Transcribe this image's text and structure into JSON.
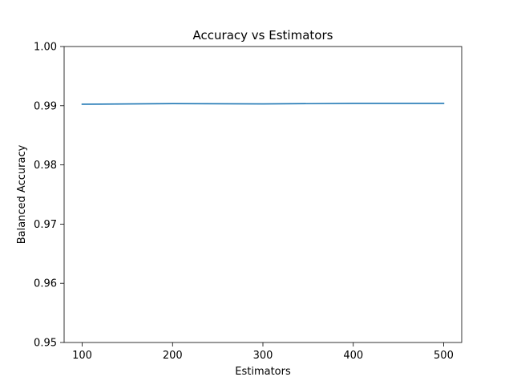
{
  "chart_data": {
    "type": "line",
    "title": "Accuracy vs Estimators",
    "xlabel": "Estimators",
    "ylabel": "Balanced Accuracy",
    "x": [
      100,
      200,
      300,
      400,
      500
    ],
    "series": [
      {
        "values": [
          0.99025,
          0.99035,
          0.9903,
          0.9904,
          0.9904
        ],
        "color": "#1f77b4"
      }
    ],
    "xlim": [
      80,
      520
    ],
    "ylim": [
      0.95,
      1.0
    ],
    "xticks": [
      "100",
      "200",
      "300",
      "400",
      "500"
    ],
    "yticks": [
      "0.95",
      "0.96",
      "0.97",
      "0.98",
      "0.99",
      "1.00"
    ],
    "grid": false,
    "legend": "none"
  }
}
